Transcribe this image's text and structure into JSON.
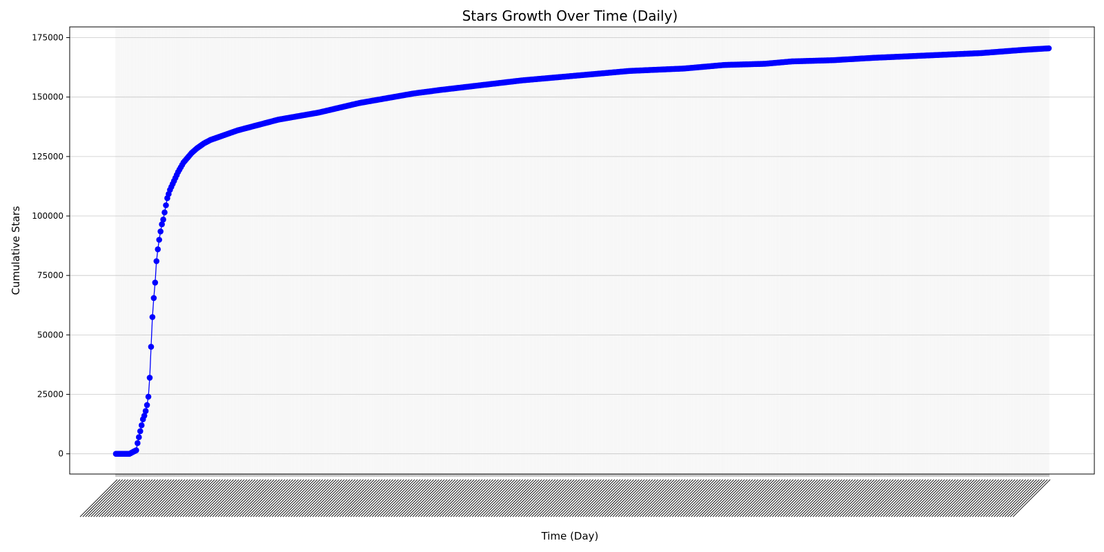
{
  "chart_data": {
    "type": "line",
    "title": "Stars Growth Over Time (Daily)",
    "xlabel": "Time (Day)",
    "ylabel": "Cumulative Stars",
    "ylim": [
      -8500,
      179500
    ],
    "yticks": [
      0,
      25000,
      50000,
      75000,
      100000,
      125000,
      150000,
      175000
    ],
    "grid": true,
    "legend": "none",
    "x_tick_labels": "illegible (dense, rotated, overlapping date labels)",
    "n_days": 690,
    "colors": {
      "line": "#0000ff",
      "marker": "#0000ff",
      "grid": "#b0b0b0",
      "axes": "#000000"
    },
    "series": [
      {
        "day_index": [
          0,
          10,
          15,
          16,
          17,
          18,
          19,
          20,
          21,
          22,
          23,
          24,
          25,
          26,
          27,
          28,
          29,
          30,
          31,
          32,
          33,
          34,
          35,
          36,
          37,
          38,
          40,
          42,
          44,
          46,
          48,
          50,
          53,
          56,
          60,
          65,
          70,
          80,
          90,
          100,
          110,
          120,
          135,
          150,
          165,
          180,
          200,
          220,
          240,
          270,
          300,
          330,
          360,
          380,
          400,
          420,
          450,
          480,
          490,
          500,
          530,
          560,
          600,
          640,
          670,
          690
        ],
        "values": [
          0,
          0,
          1500,
          4500,
          7000,
          9500,
          12000,
          14500,
          16000,
          18000,
          20500,
          24000,
          32000,
          45000,
          57500,
          65500,
          72000,
          81000,
          86000,
          90000,
          93500,
          96500,
          98500,
          101500,
          104500,
          107500,
          111000,
          113500,
          116000,
          118500,
          120500,
          122500,
          124500,
          126500,
          128500,
          130500,
          132000,
          134000,
          136000,
          137500,
          139000,
          140500,
          142000,
          143500,
          145500,
          147500,
          149500,
          151500,
          153000,
          155000,
          157000,
          158500,
          160000,
          161000,
          161500,
          162000,
          163500,
          164000,
          164500,
          165000,
          165500,
          166500,
          167500,
          168500,
          169800,
          170500
        ]
      }
    ]
  }
}
